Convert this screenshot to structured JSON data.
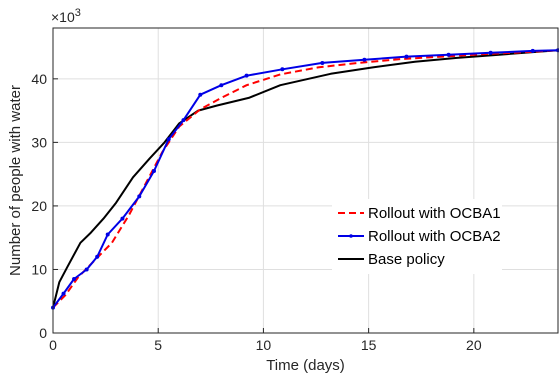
{
  "chart_data": {
    "type": "line",
    "title": "",
    "xlabel": "Time (days)",
    "ylabel": "Number of people with water",
    "y_exponent_label": "×10",
    "y_exponent_power": "3",
    "xlim": [
      0,
      24
    ],
    "ylim": [
      0,
      48
    ],
    "xticks": [
      0,
      5,
      10,
      15,
      20
    ],
    "yticks": [
      0,
      10,
      20,
      30,
      40
    ],
    "xtick_labels": [
      "0",
      "5",
      "10",
      "15",
      "20"
    ],
    "ytick_labels": [
      "0",
      "10",
      "20",
      "30",
      "40"
    ],
    "grid": true,
    "legend_position": "center-right",
    "series": [
      {
        "name": "Rollout with OCBA1",
        "color": "#ff0000",
        "style": "dashed",
        "marker": "none",
        "x": [
          0,
          0.6,
          1.2,
          2.0,
          2.8,
          3.6,
          4.4,
          5.2,
          6.0,
          7.0,
          8.0,
          9.2,
          10.8,
          12.6,
          14.5,
          16.5,
          18.5,
          20.5,
          22.5,
          24
        ],
        "y": [
          4,
          6,
          8.8,
          11.5,
          14.2,
          18.5,
          23.5,
          28.5,
          32.5,
          35.2,
          37,
          39,
          40.7,
          41.8,
          42.5,
          43.1,
          43.5,
          43.9,
          44.2,
          44.5
        ]
      },
      {
        "name": "Rollout with OCBA2",
        "color": "#0000e6",
        "style": "solid",
        "marker": "dot",
        "x": [
          0,
          0.5,
          1.0,
          1.6,
          2.1,
          2.6,
          3.3,
          4.1,
          4.8,
          5.5,
          6.2,
          7.0,
          8.0,
          9.2,
          10.9,
          12.8,
          14.8,
          16.8,
          18.8,
          20.8,
          22.8,
          24
        ],
        "y": [
          4,
          6.2,
          8.5,
          10,
          12,
          15.5,
          18,
          21.5,
          25.5,
          30.5,
          33.5,
          37.5,
          39,
          40.5,
          41.5,
          42.5,
          43,
          43.5,
          43.8,
          44.1,
          44.4,
          44.5
        ]
      },
      {
        "name": "Base policy",
        "color": "#000000",
        "style": "solid",
        "marker": "none",
        "x": [
          0,
          0.3,
          0.7,
          1.3,
          1.8,
          2.4,
          3.0,
          3.8,
          4.6,
          5.3,
          6.0,
          6.9,
          7.8,
          9.3,
          10.8,
          13.2,
          15.2,
          17.2,
          19.2,
          21.2,
          23.2,
          24
        ],
        "y": [
          4,
          8,
          10.5,
          14.2,
          15.8,
          18,
          20.5,
          24.5,
          27.5,
          30,
          33,
          35,
          35.8,
          37,
          39,
          40.8,
          41.8,
          42.7,
          43.3,
          43.8,
          44.3,
          44.5
        ]
      }
    ]
  }
}
